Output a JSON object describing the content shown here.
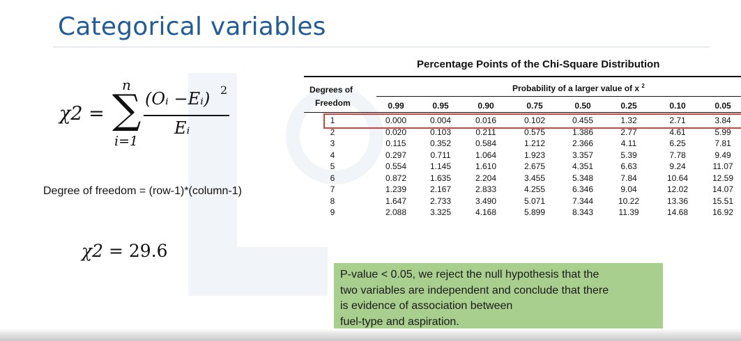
{
  "title": "Categorical variables",
  "formula": {
    "lhs": "χ2 =",
    "sum_upper": "n",
    "sum_lower": "i=1",
    "numerator": "(Oᵢ −Eᵢ)",
    "numerator_exp": "2",
    "denominator": "Eᵢ"
  },
  "degree_of_freedom_text": "Degree of freedom = (row-1)*(column-1)",
  "chi_result": {
    "lhs": "χ2 = ",
    "value": "29.6"
  },
  "table": {
    "title": "Percentage Points of the Chi-Square Distribution",
    "dof_header_line1": "Degrees of",
    "dof_header_line2": "Freedom",
    "prob_header": "Probability of a larger value of x",
    "prob_header_sup": "2",
    "columns": [
      "0.99",
      "0.95",
      "0.90",
      "0.75",
      "0.50",
      "0.25",
      "0.10",
      "0.05"
    ],
    "rows": [
      {
        "df": "1",
        "values": [
          "0.000",
          "0.004",
          "0.016",
          "0.102",
          "0.455",
          "1.32",
          "2.71",
          "3.84"
        ]
      },
      {
        "df": "2",
        "values": [
          "0.020",
          "0.103",
          "0.211",
          "0.575",
          "1.386",
          "2.77",
          "4.61",
          "5.99"
        ]
      },
      {
        "df": "3",
        "values": [
          "0.115",
          "0.352",
          "0.584",
          "1.212",
          "2.366",
          "4.11",
          "6.25",
          "7.81"
        ]
      },
      {
        "df": "4",
        "values": [
          "0.297",
          "0.711",
          "1.064",
          "1.923",
          "3.357",
          "5.39",
          "7.78",
          "9.49"
        ]
      },
      {
        "df": "5",
        "values": [
          "0.554",
          "1.145",
          "1.610",
          "2.675",
          "4.351",
          "6.63",
          "9.24",
          "11.07"
        ]
      },
      {
        "df": "6",
        "values": [
          "0.872",
          "1.635",
          "2.204",
          "3.455",
          "5.348",
          "7.84",
          "10.64",
          "12.59"
        ]
      },
      {
        "df": "7",
        "values": [
          "1.239",
          "2.167",
          "2.833",
          "4.255",
          "6.346",
          "9.04",
          "12.02",
          "14.07"
        ]
      },
      {
        "df": "8",
        "values": [
          "1.647",
          "2.733",
          "3.490",
          "5.071",
          "7.344",
          "10.22",
          "13.36",
          "15.51"
        ]
      },
      {
        "df": "9",
        "values": [
          "2.088",
          "3.325",
          "4.168",
          "5.899",
          "8.343",
          "11.39",
          "14.68",
          "16.92"
        ]
      }
    ],
    "highlighted_row": "1"
  },
  "callout": {
    "lines": [
      "P-value < 0.05, we reject the null hypothesis that the",
      "two variables are independent and conclude that there",
      "is evidence of association between",
      "fuel-type and aspiration."
    ]
  },
  "colors": {
    "title": "#1f5c99",
    "highlight_border": "#d9413a",
    "callout_bg": "#a9cf8e"
  }
}
